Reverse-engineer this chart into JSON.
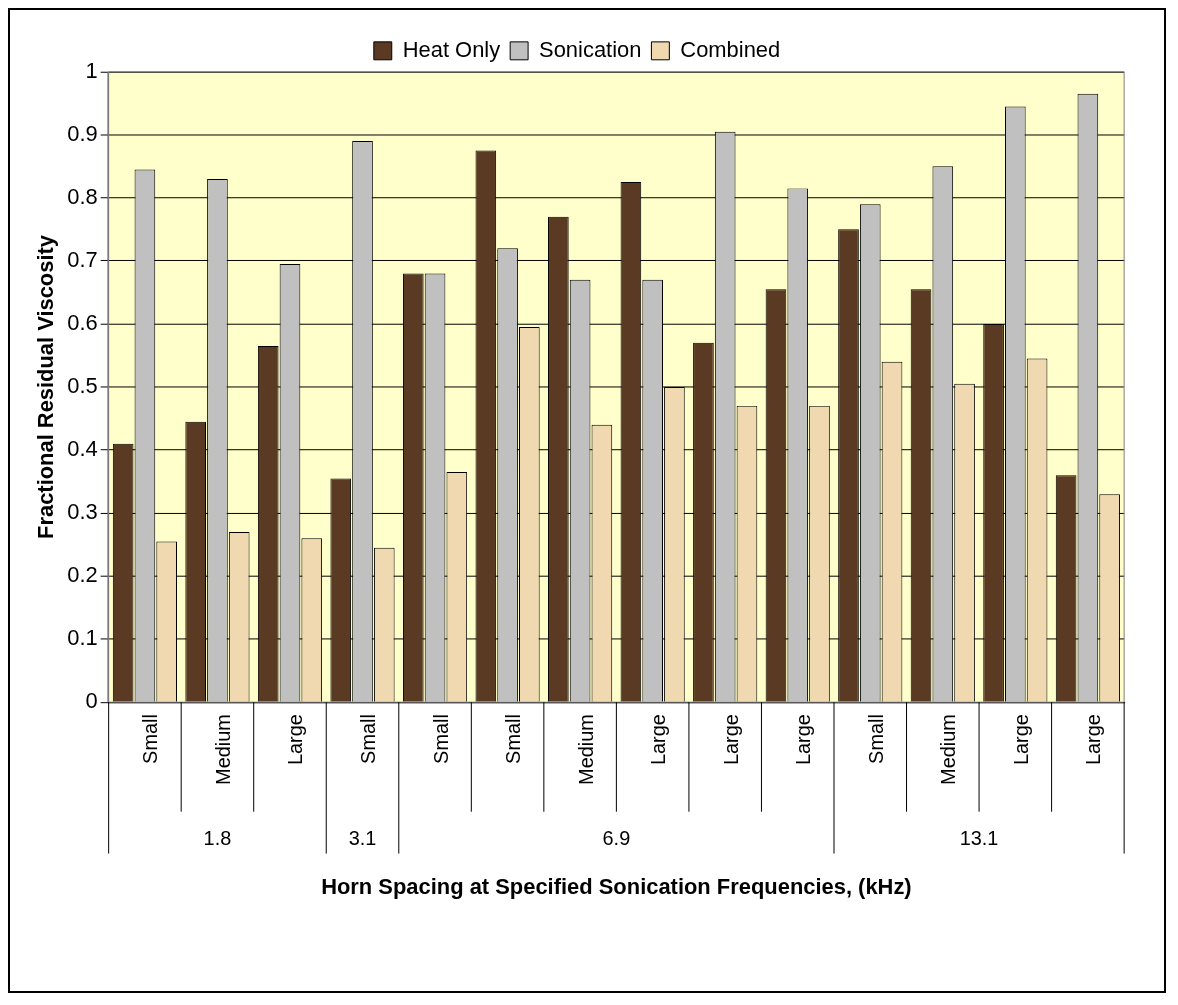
{
  "chart_data": {
    "type": "bar",
    "xlabel": "Horn Spacing at Specified Sonication Frequencies, (kHz)",
    "ylabel": "Fractional Residual Viscosity",
    "categories": [
      "Small",
      "Medium",
      "Large",
      "Small",
      "Small",
      "Small",
      "Medium",
      "Large",
      "Large",
      "Large",
      "Small",
      "Medium",
      "Large",
      "Large"
    ],
    "annotations": [
      "1.8",
      "3.1",
      "6.9",
      "13.1"
    ],
    "series": [
      {
        "name": "Heat Only",
        "color": "#5a3a22",
        "values": [
          0.41,
          0.445,
          0.565,
          0.355,
          0.68,
          0.875,
          0.77,
          0.825,
          0.57,
          0.655,
          0.75,
          0.655,
          0.6,
          0.36
        ]
      },
      {
        "name": "Sonication",
        "color": "#c0c0c0",
        "values": [
          0.845,
          0.83,
          0.695,
          0.89,
          0.68,
          0.72,
          0.67,
          0.67,
          0.905,
          0.815,
          0.79,
          0.85,
          0.945,
          0.965
        ]
      },
      {
        "name": "Combined",
        "color": "#f0d9b0",
        "values": [
          0.255,
          0.27,
          0.26,
          0.245,
          0.365,
          0.595,
          0.44,
          0.5,
          0.47,
          0.47,
          0.54,
          0.505,
          0.545,
          0.33
        ]
      }
    ],
    "ylim": [
      0,
      1
    ],
    "yticks": [
      0,
      0.1,
      0.2,
      0.3,
      0.4,
      0.5,
      0.6,
      0.7,
      0.8,
      0.9,
      1
    ],
    "grid": "y",
    "legend": "top"
  }
}
